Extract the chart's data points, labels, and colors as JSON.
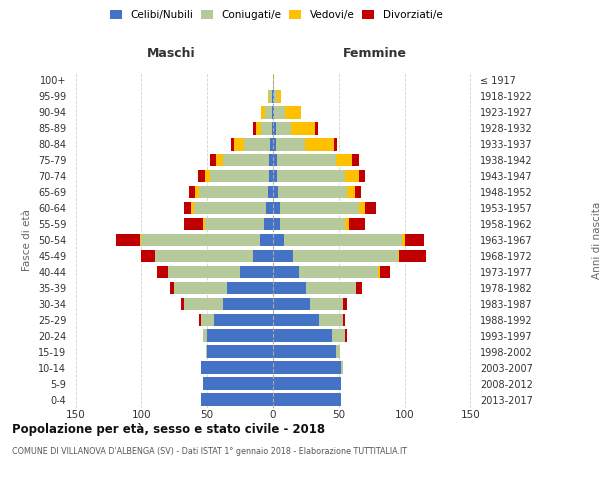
{
  "age_groups": [
    "0-4",
    "5-9",
    "10-14",
    "15-19",
    "20-24",
    "25-29",
    "30-34",
    "35-39",
    "40-44",
    "45-49",
    "50-54",
    "55-59",
    "60-64",
    "65-69",
    "70-74",
    "75-79",
    "80-84",
    "85-89",
    "90-94",
    "95-99",
    "100+"
  ],
  "birth_years": [
    "2013-2017",
    "2008-2012",
    "2003-2007",
    "1998-2002",
    "1993-1997",
    "1988-1992",
    "1983-1987",
    "1978-1982",
    "1973-1977",
    "1968-1972",
    "1963-1967",
    "1958-1962",
    "1953-1957",
    "1948-1952",
    "1943-1947",
    "1938-1942",
    "1933-1937",
    "1928-1932",
    "1923-1927",
    "1918-1922",
    "≤ 1917"
  ],
  "male": {
    "celibe": [
      55,
      53,
      55,
      50,
      50,
      45,
      38,
      35,
      25,
      15,
      10,
      7,
      5,
      4,
      3,
      3,
      2,
      1,
      1,
      1,
      0
    ],
    "coniugato": [
      0,
      0,
      0,
      1,
      3,
      10,
      30,
      40,
      55,
      75,
      90,
      45,
      55,
      52,
      45,
      35,
      20,
      8,
      5,
      2,
      0
    ],
    "vedovo": [
      0,
      0,
      0,
      0,
      0,
      0,
      0,
      0,
      0,
      0,
      1,
      1,
      2,
      3,
      4,
      5,
      8,
      4,
      3,
      1,
      0
    ],
    "divorziato": [
      0,
      0,
      0,
      0,
      0,
      1,
      2,
      3,
      8,
      10,
      18,
      15,
      6,
      5,
      5,
      5,
      2,
      2,
      0,
      0,
      0
    ]
  },
  "female": {
    "nubile": [
      52,
      52,
      52,
      48,
      45,
      35,
      28,
      25,
      20,
      15,
      8,
      5,
      5,
      4,
      3,
      3,
      2,
      2,
      1,
      1,
      0
    ],
    "coniugata": [
      0,
      0,
      1,
      3,
      10,
      18,
      25,
      38,
      60,
      80,
      90,
      50,
      60,
      52,
      52,
      45,
      22,
      12,
      8,
      2,
      0
    ],
    "vedova": [
      0,
      0,
      0,
      0,
      0,
      0,
      0,
      0,
      1,
      1,
      2,
      3,
      5,
      6,
      10,
      12,
      22,
      18,
      12,
      3,
      1
    ],
    "divorziata": [
      0,
      0,
      0,
      0,
      1,
      2,
      3,
      5,
      8,
      20,
      15,
      12,
      8,
      5,
      5,
      5,
      3,
      2,
      0,
      0,
      0
    ]
  },
  "colors": {
    "celibe": "#4472c4",
    "coniugato": "#b5c99a",
    "vedovo": "#ffc000",
    "divorziato": "#c00000"
  },
  "title": "Popolazione per età, sesso e stato civile - 2018",
  "subtitle": "COMUNE DI VILLANOVA D'ALBENGA (SV) - Dati ISTAT 1° gennaio 2018 - Elaborazione TUTTITALIA.IT",
  "xlabel_left": "Maschi",
  "xlabel_right": "Femmine",
  "ylabel_left": "Fasce di età",
  "ylabel_right": "Anni di nascita",
  "xlim": 155,
  "xticks": [
    -150,
    -100,
    -50,
    0,
    50,
    100,
    150
  ],
  "background_color": "#ffffff",
  "grid_color": "#cccccc"
}
